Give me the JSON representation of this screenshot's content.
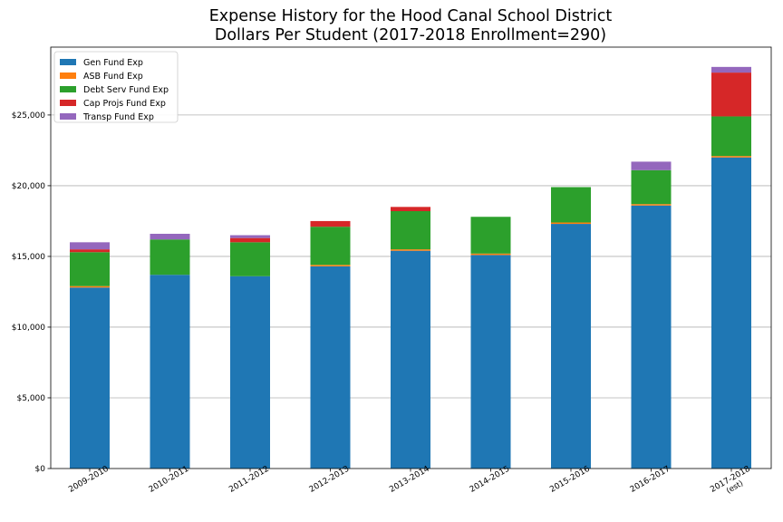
{
  "chart_data": {
    "type": "bar",
    "stacked": true,
    "title": "Expense History for the Hood Canal School District",
    "subtitle": "Dollars Per Student (2017-2018 Enrollment=290)",
    "xlabel": "",
    "ylabel": "",
    "categories": [
      "2009-2010",
      "2010-2011",
      "2011-2012",
      "2012-2013",
      "2013-2014",
      "2014-2015",
      "2015-2016",
      "2016-2017",
      "2017-2018\n(est)"
    ],
    "y_ticks": [
      0,
      5000,
      10000,
      15000,
      20000,
      25000
    ],
    "y_tick_labels": [
      "$0",
      "$5,000",
      "$10,000",
      "$15,000",
      "$20,000",
      "$25,000"
    ],
    "ylim": [
      0,
      29800
    ],
    "grid": "horizontal",
    "legend_position": "top-left",
    "series": [
      {
        "name": "Gen Fund Exp",
        "color": "#1f77b4",
        "values": [
          12800,
          13700,
          13600,
          14300,
          15400,
          15100,
          17300,
          18600,
          22000
        ]
      },
      {
        "name": "ASB Fund Exp",
        "color": "#ff7f0e",
        "values": [
          100,
          0,
          0,
          100,
          100,
          100,
          100,
          100,
          100
        ]
      },
      {
        "name": "Debt Serv Fund Exp",
        "color": "#2ca02c",
        "values": [
          2400,
          2500,
          2400,
          2700,
          2700,
          2600,
          2500,
          2400,
          2800
        ]
      },
      {
        "name": "Cap Projs Fund Exp",
        "color": "#d62728",
        "values": [
          200,
          0,
          300,
          400,
          300,
          0,
          0,
          0,
          3100
        ]
      },
      {
        "name": "Transp Fund Exp",
        "color": "#9467bd",
        "values": [
          500,
          400,
          200,
          0,
          0,
          0,
          0,
          600,
          400
        ]
      }
    ]
  }
}
